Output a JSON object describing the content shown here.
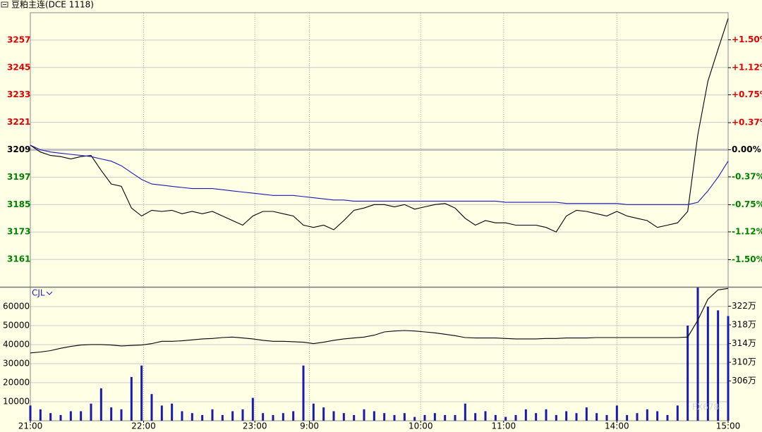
{
  "chart_data": [
    {
      "type": "line",
      "title": "豆粕主连(DCE 1118)",
      "x": [
        0,
        5,
        10,
        15,
        20,
        25,
        30,
        35,
        40,
        45,
        50,
        55,
        60,
        65,
        70,
        75,
        80,
        85,
        90,
        95,
        100,
        105,
        110,
        115,
        120,
        125,
        130,
        135,
        140,
        145,
        150,
        155,
        160,
        165,
        170,
        175,
        180,
        185,
        190,
        195,
        200,
        205,
        210,
        215,
        220,
        225,
        230,
        235,
        240,
        245,
        250,
        255,
        260,
        265,
        270,
        275,
        280,
        285,
        290,
        295,
        300,
        305,
        310,
        315,
        320,
        325,
        330,
        335,
        340,
        345
      ],
      "xlim": [
        0,
        345
      ],
      "ylim": [
        3149,
        3269
      ],
      "yticks": [
        3161,
        3173,
        3185,
        3197,
        3209,
        3221,
        3233,
        3245,
        3257
      ],
      "y2lim": [
        -1.87,
        1.87
      ],
      "y2ticks": [
        {
          "value": -1.5,
          "label": "-1.50%"
        },
        {
          "value": -1.12,
          "label": "-1.12%"
        },
        {
          "value": -0.75,
          "label": "-0.75%"
        },
        {
          "value": -0.37,
          "label": "-0.37%"
        },
        {
          "value": 0,
          "label": "0.00%"
        },
        {
          "value": 0.37,
          "label": "+0.37%"
        },
        {
          "value": 0.75,
          "label": "+0.75%"
        },
        {
          "value": 1.12,
          "label": "+1.12%"
        },
        {
          "value": 1.5,
          "label": "+1.50%"
        }
      ],
      "up_color": "#e00000",
      "down_color": "#008000",
      "series": [
        {
          "color": "#000000",
          "values": [
            3211,
            3208,
            3206.5,
            3206,
            3205,
            3206,
            3206.5,
            3200,
            3194,
            3193,
            3183.5,
            3180,
            3182.5,
            3182,
            3182.5,
            3181,
            3182,
            3181,
            3182,
            3180,
            3178,
            3176,
            3180,
            3182,
            3182,
            3181,
            3180,
            3176,
            3175,
            3176,
            3174,
            3178,
            3182.5,
            3183.5,
            3185,
            3185,
            3184,
            3185,
            3183,
            3184,
            3185,
            3185.5,
            3183.5,
            3179,
            3176,
            3178,
            3177,
            3177,
            3176,
            3176,
            3176,
            3175,
            3173,
            3180,
            3182.5,
            3182,
            3181,
            3180,
            3182,
            3180,
            3179,
            3178,
            3175,
            3176,
            3177,
            3182,
            3215.5,
            3239,
            3253,
            3266.5
          ]
        },
        {
          "color": "#1a1ab0",
          "values": [
            3211,
            3209,
            3208,
            3207.5,
            3207,
            3206.5,
            3206,
            3205,
            3204,
            3202,
            3199,
            3196,
            3194,
            3193.5,
            3193,
            3192.5,
            3192,
            3192,
            3192,
            3191.5,
            3191,
            3190.5,
            3190,
            3189.5,
            3189,
            3189,
            3189,
            3188.5,
            3188,
            3187.5,
            3187,
            3187,
            3186.5,
            3186.5,
            3186.5,
            3186.5,
            3186.5,
            3186.5,
            3186.5,
            3186.5,
            3186.5,
            3186.5,
            3186.5,
            3186.5,
            3186.5,
            3186.5,
            3186.5,
            3186,
            3186,
            3186,
            3186,
            3186,
            3186,
            3185.5,
            3185.5,
            3185.5,
            3185.5,
            3185.5,
            3185.5,
            3185,
            3185,
            3185,
            3185,
            3185,
            3185,
            3185,
            3186,
            3191,
            3197,
            3204
          ]
        }
      ]
    },
    {
      "type": "bar",
      "label": "CJL",
      "watermark": "FX678",
      "x": [
        0,
        5,
        10,
        15,
        20,
        25,
        30,
        35,
        40,
        45,
        50,
        55,
        60,
        65,
        70,
        75,
        80,
        85,
        90,
        95,
        100,
        105,
        110,
        115,
        120,
        125,
        130,
        135,
        140,
        145,
        150,
        155,
        160,
        165,
        170,
        175,
        180,
        185,
        190,
        195,
        200,
        205,
        210,
        215,
        220,
        225,
        230,
        235,
        240,
        245,
        250,
        255,
        260,
        265,
        270,
        275,
        280,
        285,
        290,
        295,
        300,
        305,
        310,
        315,
        320,
        325,
        330,
        335,
        340,
        345
      ],
      "xlim": [
        0,
        345
      ],
      "xticks": [
        {
          "value": 0,
          "label": "21:00"
        },
        {
          "value": 56,
          "label": "22:00"
        },
        {
          "value": 111,
          "label": "23:00"
        },
        {
          "value": 138,
          "label": "9:00"
        },
        {
          "value": 193,
          "label": "10:00"
        },
        {
          "value": 234,
          "label": "11:00"
        },
        {
          "value": 290,
          "label": "14:00"
        },
        {
          "value": 345,
          "label": "15:00"
        }
      ],
      "ylim": [
        0,
        70000
      ],
      "yticks": [
        10000,
        20000,
        30000,
        40000,
        50000,
        60000
      ],
      "y2lim": [
        2975000,
        3260000
      ],
      "y2ticks": [
        {
          "value": 3060000,
          "label": "306万"
        },
        {
          "value": 3100000,
          "label": "310万"
        },
        {
          "value": 3140000,
          "label": "314万"
        },
        {
          "value": 3180000,
          "label": "318万"
        },
        {
          "value": 3220000,
          "label": "322万"
        }
      ],
      "series": [
        {
          "color": "#1a1ab0",
          "values": [
            8000,
            6000,
            4000,
            3000,
            5000,
            5000,
            9000,
            17000,
            7000,
            6000,
            23000,
            29000,
            14000,
            8000,
            9000,
            5000,
            4000,
            3000,
            6000,
            3000,
            5000,
            6000,
            12000,
            4000,
            3000,
            4000,
            5000,
            29000,
            9000,
            7000,
            5000,
            4000,
            3000,
            6000,
            5000,
            4000,
            3000,
            4000,
            2000,
            3000,
            4000,
            3000,
            3000,
            9000,
            4000,
            5000,
            3000,
            2000,
            3000,
            6000,
            4000,
            6000,
            3000,
            5000,
            4000,
            7000,
            4000,
            3000,
            8000,
            3000,
            4000,
            6000,
            5000,
            3000,
            8000,
            50000,
            70000,
            60000,
            58000,
            55000
          ]
        },
        {
          "color": "#000000",
          "axis": "y2",
          "values": [
            3120000,
            3122000,
            3125000,
            3130000,
            3134000,
            3137000,
            3138000,
            3138000,
            3137000,
            3135000,
            3136000,
            3137000,
            3140000,
            3145000,
            3145000,
            3146000,
            3148000,
            3150000,
            3151000,
            3153000,
            3154000,
            3152000,
            3150000,
            3147000,
            3145000,
            3145000,
            3144000,
            3143000,
            3140000,
            3143000,
            3147000,
            3150000,
            3152000,
            3154000,
            3158000,
            3165000,
            3167000,
            3168000,
            3167000,
            3165000,
            3163000,
            3160000,
            3157000,
            3153000,
            3152000,
            3152000,
            3152000,
            3151000,
            3150000,
            3150000,
            3150000,
            3151000,
            3151000,
            3152000,
            3152000,
            3152000,
            3153000,
            3153000,
            3153000,
            3153000,
            3153000,
            3153000,
            3153000,
            3153000,
            3153000,
            3154000,
            3190000,
            3235000,
            3255000,
            3258000
          ]
        }
      ]
    }
  ]
}
